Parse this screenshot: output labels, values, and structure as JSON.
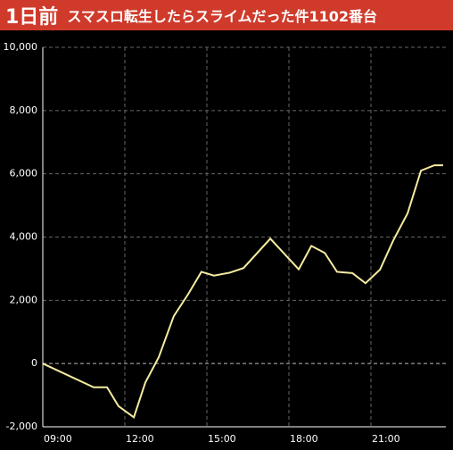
{
  "header": {
    "badge": "1日前",
    "title": "スマスロ転生したらスライムだった件1102番台"
  },
  "chart_data": {
    "type": "line",
    "color": "#f5eca0",
    "grid": true,
    "x": [
      9.0,
      10.86,
      11.35,
      11.77,
      12.33,
      12.75,
      13.24,
      13.79,
      14.32,
      14.8,
      15.26,
      15.82,
      16.34,
      17.32,
      18.36,
      18.82,
      19.31,
      19.76,
      20.32,
      20.8,
      21.33,
      21.82,
      22.34,
      22.83,
      23.32,
      23.64
    ],
    "values": [
      0,
      -750,
      -750,
      -1350,
      -1700,
      -600,
      200,
      1500,
      2200,
      2900,
      2780,
      2870,
      3020,
      3950,
      2980,
      3720,
      3500,
      2900,
      2860,
      2540,
      2970,
      3900,
      4750,
      6100,
      6270,
      6270
    ],
    "xlim": [
      9,
      23.74
    ],
    "xticks": [
      {
        "value": 9,
        "label": "09:00"
      },
      {
        "value": 12,
        "label": "12:00"
      },
      {
        "value": 15,
        "label": "15:00"
      },
      {
        "value": 18,
        "label": "18:00"
      },
      {
        "value": 21,
        "label": "21:00"
      }
    ],
    "ylim": [
      -2000,
      10000
    ],
    "yticks": [
      {
        "value": -2000,
        "label": "-2,000"
      },
      0,
      {
        "value": 2000,
        "label": "2,000"
      },
      {
        "value": 4000,
        "label": "4,000"
      },
      {
        "value": 6000,
        "label": "6,000"
      },
      {
        "value": 8000,
        "label": "8,000"
      },
      {
        "value": 10000,
        "label": "10,000"
      }
    ]
  }
}
